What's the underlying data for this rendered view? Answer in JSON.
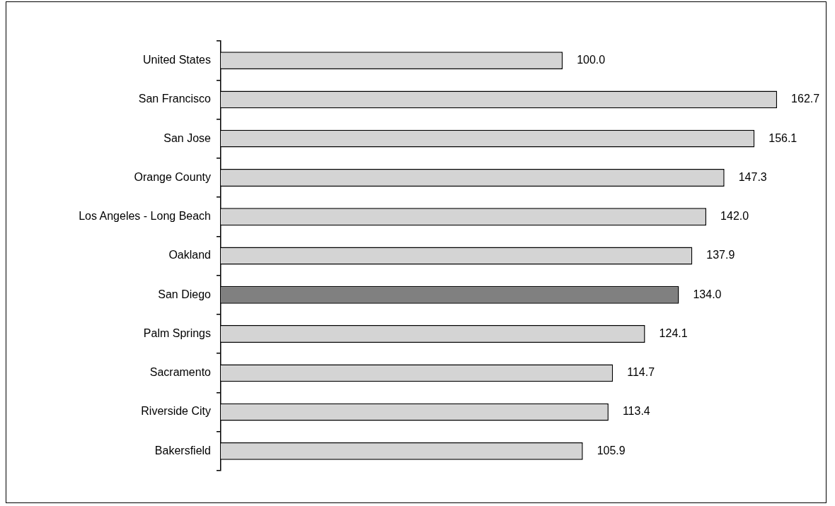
{
  "chart_data": {
    "type": "bar",
    "orientation": "horizontal",
    "categories": [
      "United States",
      "San Francisco",
      "San Jose",
      "Orange County",
      "Los Angeles - Long Beach",
      "Oakland",
      "San Diego",
      "Palm Springs",
      "Sacramento",
      "Riverside City",
      "Bakersfield"
    ],
    "values": [
      100.0,
      162.7,
      156.1,
      147.3,
      142.0,
      137.9,
      134.0,
      124.1,
      114.7,
      113.4,
      105.9
    ],
    "colors": [
      "#d4d4d4",
      "#d4d4d4",
      "#d4d4d4",
      "#d4d4d4",
      "#d4d4d4",
      "#d4d4d4",
      "#808080",
      "#d4d4d4",
      "#d4d4d4",
      "#d4d4d4",
      "#d4d4d4"
    ],
    "value_labels": [
      "100.0",
      "162.7",
      "156.1",
      "147.3",
      "142.0",
      "137.9",
      "134.0",
      "124.1",
      "114.7",
      "113.4",
      "105.9"
    ],
    "legend": false
  }
}
